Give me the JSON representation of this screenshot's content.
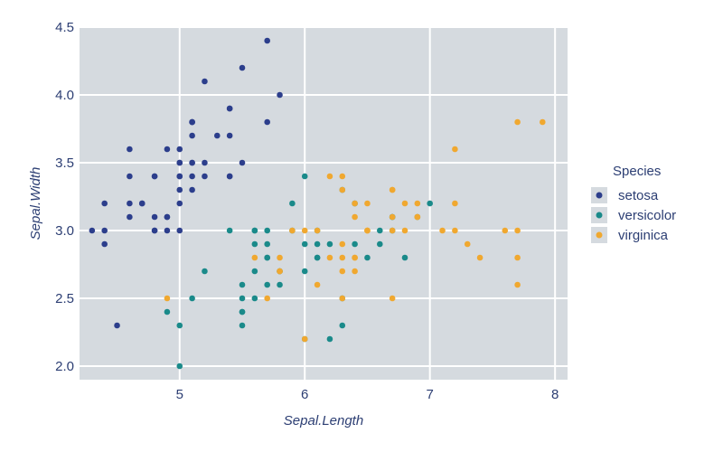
{
  "chart_data": {
    "type": "scatter",
    "xlabel": "Sepal.Length",
    "ylabel": "Sepal.Width",
    "xlim": [
      4.2,
      8.1
    ],
    "ylim": [
      1.9,
      4.5
    ],
    "x_ticks": [
      5,
      6,
      7,
      8
    ],
    "x_tick_labels": [
      "5",
      "6",
      "7",
      "8"
    ],
    "y_ticks": [
      2.0,
      2.5,
      3.0,
      3.5,
      4.0,
      4.5
    ],
    "y_tick_labels": [
      "2.0",
      "2.5",
      "3.0",
      "3.5",
      "4.0",
      "4.5"
    ],
    "grid": true,
    "background_color": "#d5dadf",
    "grid_color": "#ffffff",
    "legend": {
      "title": "Species",
      "position": "right"
    },
    "series": [
      {
        "name": "setosa",
        "color": "#2c3e8c",
        "points": [
          [
            5.1,
            3.5
          ],
          [
            4.9,
            3.0
          ],
          [
            4.7,
            3.2
          ],
          [
            4.6,
            3.1
          ],
          [
            5.0,
            3.6
          ],
          [
            5.4,
            3.9
          ],
          [
            4.6,
            3.4
          ],
          [
            5.0,
            3.4
          ],
          [
            4.4,
            2.9
          ],
          [
            4.9,
            3.1
          ],
          [
            5.4,
            3.7
          ],
          [
            4.8,
            3.4
          ],
          [
            4.8,
            3.0
          ],
          [
            4.3,
            3.0
          ],
          [
            5.8,
            4.0
          ],
          [
            5.7,
            4.4
          ],
          [
            5.4,
            3.9
          ],
          [
            5.1,
            3.5
          ],
          [
            5.7,
            3.8
          ],
          [
            5.1,
            3.8
          ],
          [
            5.4,
            3.4
          ],
          [
            5.1,
            3.7
          ],
          [
            4.6,
            3.6
          ],
          [
            5.1,
            3.3
          ],
          [
            4.8,
            3.4
          ],
          [
            5.0,
            3.0
          ],
          [
            5.0,
            3.4
          ],
          [
            5.2,
            3.5
          ],
          [
            5.2,
            3.4
          ],
          [
            4.7,
            3.2
          ],
          [
            4.8,
            3.1
          ],
          [
            5.4,
            3.4
          ],
          [
            5.2,
            4.1
          ],
          [
            5.5,
            4.2
          ],
          [
            4.9,
            3.1
          ],
          [
            5.0,
            3.2
          ],
          [
            5.5,
            3.5
          ],
          [
            4.9,
            3.6
          ],
          [
            4.4,
            3.0
          ],
          [
            5.1,
            3.4
          ],
          [
            5.0,
            3.5
          ],
          [
            4.5,
            2.3
          ],
          [
            4.4,
            3.2
          ],
          [
            5.0,
            3.5
          ],
          [
            5.1,
            3.8
          ],
          [
            4.8,
            3.0
          ],
          [
            5.1,
            3.8
          ],
          [
            4.6,
            3.2
          ],
          [
            5.3,
            3.7
          ],
          [
            5.0,
            3.3
          ]
        ]
      },
      {
        "name": "versicolor",
        "color": "#1a8a8a",
        "points": [
          [
            7.0,
            3.2
          ],
          [
            6.4,
            3.2
          ],
          [
            6.9,
            3.1
          ],
          [
            5.5,
            2.3
          ],
          [
            6.5,
            2.8
          ],
          [
            5.7,
            2.8
          ],
          [
            6.3,
            3.3
          ],
          [
            4.9,
            2.4
          ],
          [
            6.6,
            2.9
          ],
          [
            5.2,
            2.7
          ],
          [
            5.0,
            2.0
          ],
          [
            5.9,
            3.0
          ],
          [
            6.0,
            2.2
          ],
          [
            6.1,
            2.9
          ],
          [
            5.6,
            2.9
          ],
          [
            6.7,
            3.1
          ],
          [
            5.6,
            3.0
          ],
          [
            5.8,
            2.7
          ],
          [
            6.2,
            2.2
          ],
          [
            5.6,
            2.5
          ],
          [
            5.9,
            3.2
          ],
          [
            6.1,
            2.8
          ],
          [
            6.3,
            2.5
          ],
          [
            6.1,
            2.8
          ],
          [
            6.4,
            2.9
          ],
          [
            6.6,
            3.0
          ],
          [
            6.8,
            2.8
          ],
          [
            6.7,
            3.0
          ],
          [
            6.0,
            2.9
          ],
          [
            5.7,
            2.6
          ],
          [
            5.5,
            2.4
          ],
          [
            5.5,
            2.4
          ],
          [
            5.8,
            2.7
          ],
          [
            6.0,
            2.7
          ],
          [
            5.4,
            3.0
          ],
          [
            6.0,
            3.4
          ],
          [
            6.7,
            3.1
          ],
          [
            6.3,
            2.3
          ],
          [
            5.6,
            3.0
          ],
          [
            5.5,
            2.5
          ],
          [
            5.5,
            2.6
          ],
          [
            6.1,
            3.0
          ],
          [
            5.8,
            2.6
          ],
          [
            5.0,
            2.3
          ],
          [
            5.6,
            2.7
          ],
          [
            5.7,
            3.0
          ],
          [
            5.7,
            2.9
          ],
          [
            6.2,
            2.9
          ],
          [
            5.1,
            2.5
          ],
          [
            5.7,
            2.8
          ]
        ]
      },
      {
        "name": "virginica",
        "color": "#f0a830",
        "points": [
          [
            6.3,
            3.3
          ],
          [
            5.8,
            2.7
          ],
          [
            7.1,
            3.0
          ],
          [
            6.3,
            2.9
          ],
          [
            6.5,
            3.0
          ],
          [
            7.6,
            3.0
          ],
          [
            4.9,
            2.5
          ],
          [
            7.3,
            2.9
          ],
          [
            6.7,
            2.5
          ],
          [
            7.2,
            3.6
          ],
          [
            6.5,
            3.2
          ],
          [
            6.4,
            2.7
          ],
          [
            6.8,
            3.0
          ],
          [
            5.7,
            2.5
          ],
          [
            5.8,
            2.8
          ],
          [
            6.4,
            3.2
          ],
          [
            6.5,
            3.0
          ],
          [
            7.7,
            3.8
          ],
          [
            7.7,
            2.6
          ],
          [
            6.0,
            2.2
          ],
          [
            6.9,
            3.2
          ],
          [
            5.6,
            2.8
          ],
          [
            7.7,
            2.8
          ],
          [
            6.3,
            2.7
          ],
          [
            6.7,
            3.3
          ],
          [
            7.2,
            3.2
          ],
          [
            6.2,
            2.8
          ],
          [
            6.1,
            3.0
          ],
          [
            6.4,
            2.8
          ],
          [
            7.2,
            3.0
          ],
          [
            7.4,
            2.8
          ],
          [
            7.9,
            3.8
          ],
          [
            6.4,
            2.8
          ],
          [
            6.3,
            2.8
          ],
          [
            6.1,
            2.6
          ],
          [
            7.7,
            3.0
          ],
          [
            6.3,
            3.4
          ],
          [
            6.4,
            3.1
          ],
          [
            6.0,
            3.0
          ],
          [
            6.9,
            3.1
          ],
          [
            6.7,
            3.1
          ],
          [
            6.9,
            3.1
          ],
          [
            5.8,
            2.7
          ],
          [
            6.8,
            3.2
          ],
          [
            6.7,
            3.3
          ],
          [
            6.7,
            3.0
          ],
          [
            6.3,
            2.5
          ],
          [
            6.5,
            3.0
          ],
          [
            6.2,
            3.4
          ],
          [
            5.9,
            3.0
          ]
        ]
      }
    ]
  }
}
